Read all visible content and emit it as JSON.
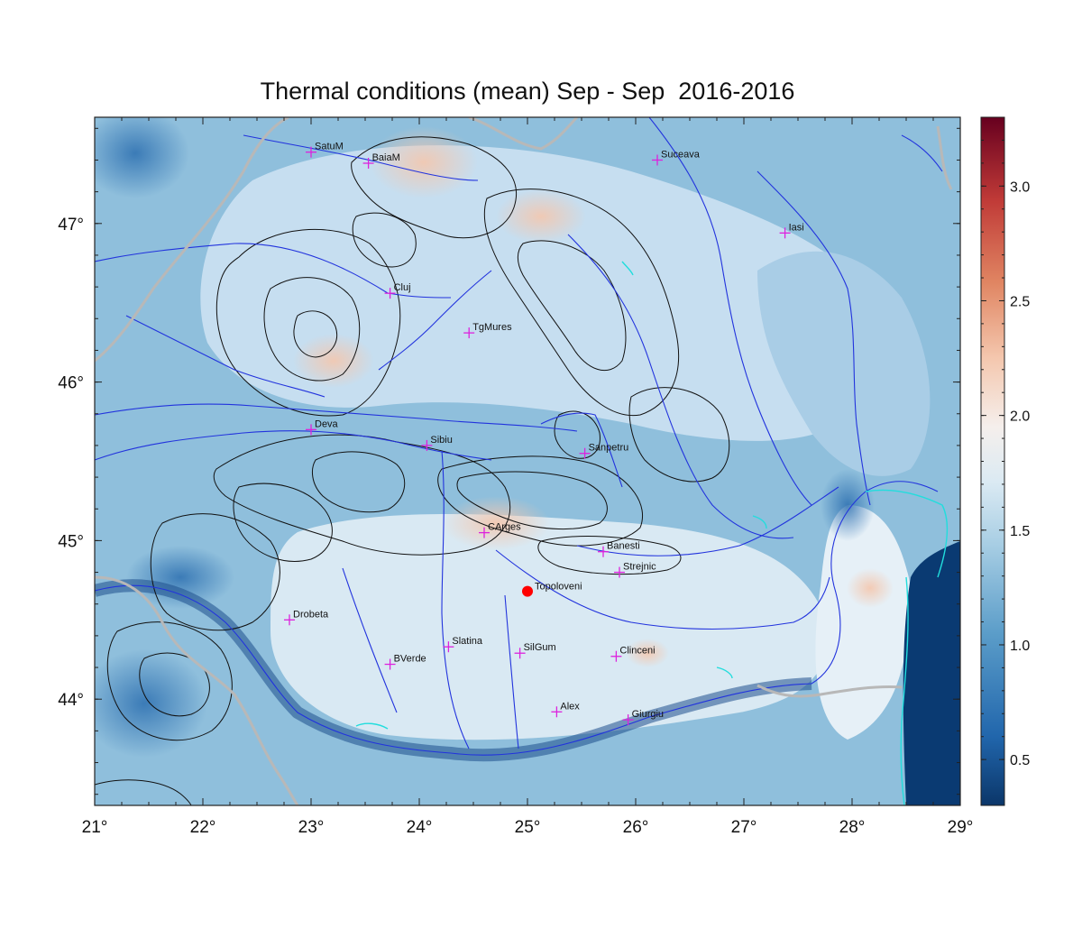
{
  "title": "Thermal conditions (mean) Sep - Sep  2016-2016",
  "map": {
    "lon_ticks": [
      "21°",
      "22°",
      "23°",
      "24°",
      "25°",
      "26°",
      "27°",
      "28°",
      "29°"
    ],
    "lat_ticks": [
      "44°",
      "45°",
      "46°",
      "47°"
    ],
    "lon_range": [
      21,
      29
    ],
    "lat_range": [
      43.33,
      47.67
    ]
  },
  "cities": [
    {
      "name": "SatuM",
      "lon": 23.0,
      "lat": 47.45
    },
    {
      "name": "BaiaM",
      "lon": 23.53,
      "lat": 47.38
    },
    {
      "name": "Suceava",
      "lon": 26.2,
      "lat": 47.4
    },
    {
      "name": "Iasi",
      "lon": 27.38,
      "lat": 46.94
    },
    {
      "name": "Cluj",
      "lon": 23.73,
      "lat": 46.56
    },
    {
      "name": "TgMures",
      "lon": 24.46,
      "lat": 46.31
    },
    {
      "name": "Deva",
      "lon": 23.0,
      "lat": 45.7
    },
    {
      "name": "Sibiu",
      "lon": 24.07,
      "lat": 45.6
    },
    {
      "name": "Sanpetru",
      "lon": 25.53,
      "lat": 45.55
    },
    {
      "name": "CArges",
      "lon": 24.6,
      "lat": 45.05
    },
    {
      "name": "Banesti",
      "lon": 25.7,
      "lat": 44.93
    },
    {
      "name": "Strejnic",
      "lon": 25.85,
      "lat": 44.8
    },
    {
      "name": "Drobeta",
      "lon": 22.8,
      "lat": 44.5
    },
    {
      "name": "Slatina",
      "lon": 24.27,
      "lat": 44.33
    },
    {
      "name": "SilGum",
      "lon": 24.93,
      "lat": 44.29
    },
    {
      "name": "Clinceni",
      "lon": 25.82,
      "lat": 44.27
    },
    {
      "name": "BVerde",
      "lon": 23.73,
      "lat": 44.22
    },
    {
      "name": "Alex",
      "lon": 25.27,
      "lat": 43.92
    },
    {
      "name": "Giurgiu",
      "lon": 25.93,
      "lat": 43.87
    }
  ],
  "highlight": {
    "name": "Topoloveni",
    "lon": 25.0,
    "lat": 44.68,
    "color": "#ff0000"
  },
  "colorbar": {
    "min": 0.3,
    "max": 3.3,
    "tick_values": [
      0.5,
      1.0,
      1.5,
      2.0,
      2.5,
      3.0
    ],
    "tick_labels": [
      "0.5",
      "1.0",
      "1.5",
      "2.0",
      "2.5",
      "3.0"
    ],
    "stops": [
      "#0b3669",
      "#2166ac",
      "#5b9dc9",
      "#a8cee4",
      "#dbeaf3",
      "#f5efec",
      "#f4c7ae",
      "#e08562",
      "#c03a37",
      "#67001f"
    ]
  },
  "colors": {
    "sea": "#0a3a72",
    "rivers": "#2233dd",
    "borders": "#b8b8b8",
    "contours": "#111111",
    "coast": "#22dddd",
    "marker": "#dd22dd"
  }
}
